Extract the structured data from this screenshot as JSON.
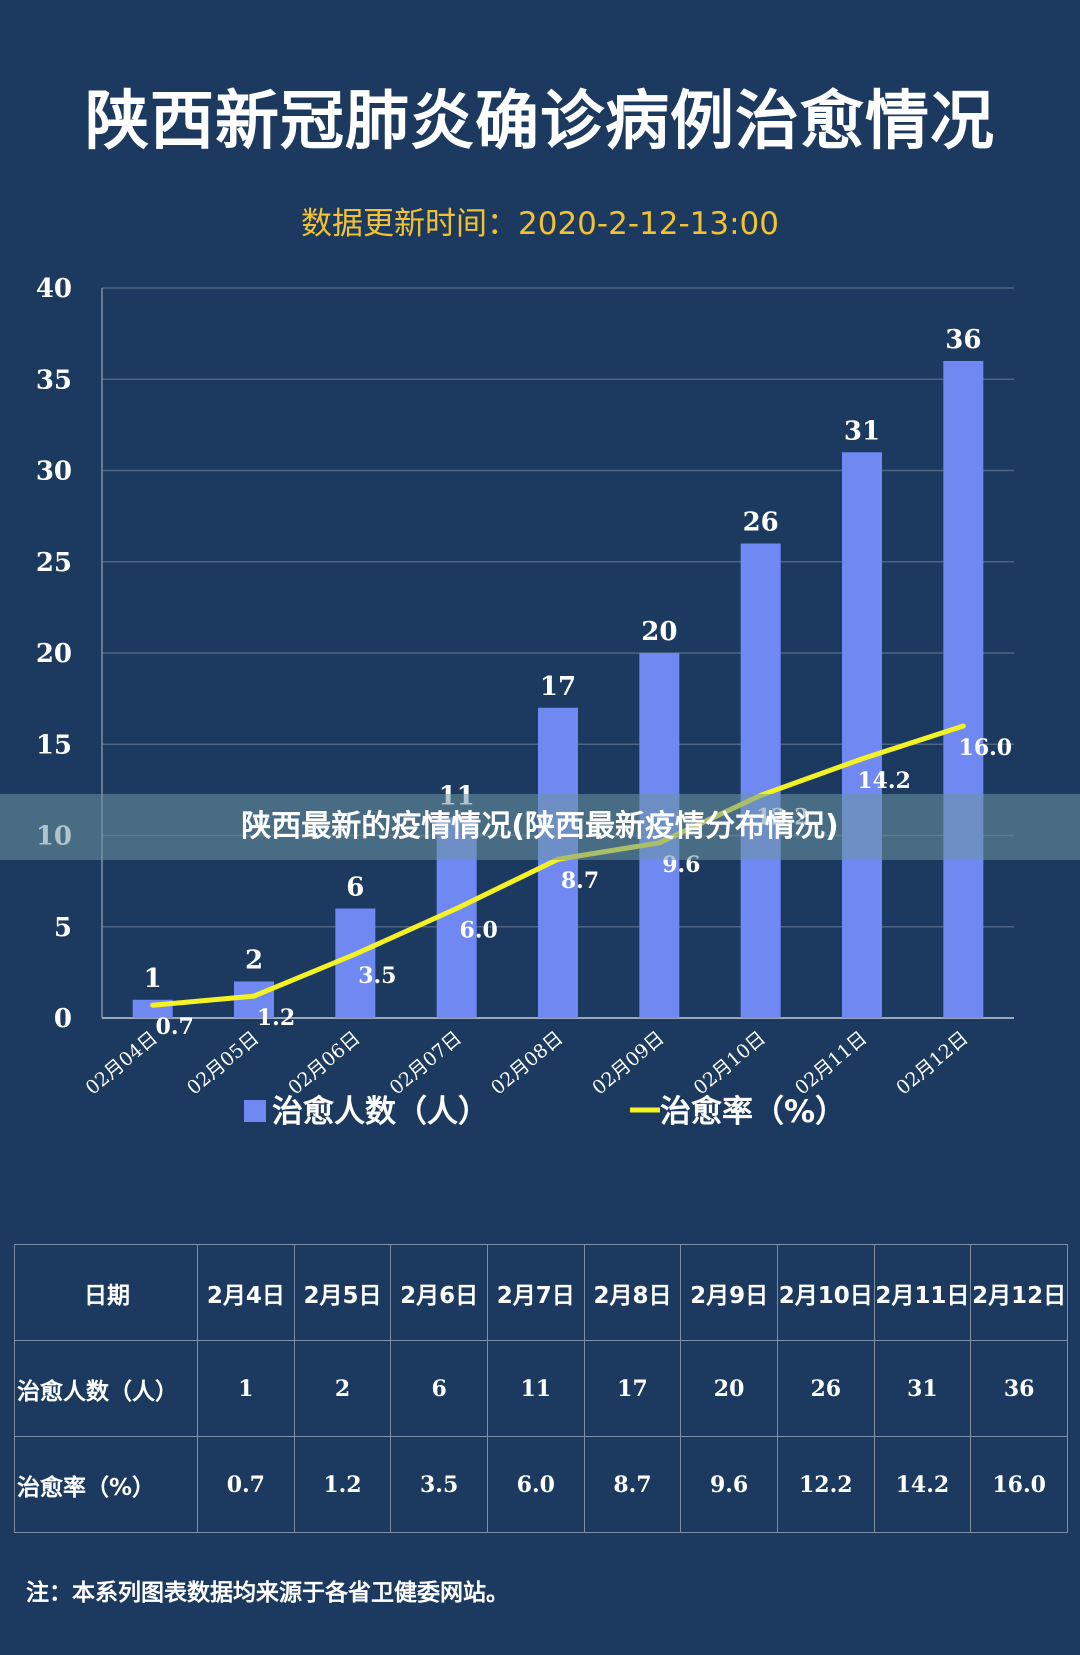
{
  "header": {
    "title": "陕西新冠肺炎确诊病例治愈情况",
    "subtitle": "数据更新时间：2020-2-12-13:00"
  },
  "overlay_banner": "陕西最新的疫情情况(陕西最新疫情分布情况)",
  "chart_data": {
    "type": "bar",
    "categories": [
      "02月04日",
      "02月05日",
      "02月06日",
      "02月07日",
      "02月08日",
      "02月09日",
      "02月10日",
      "02月11日",
      "02月12日"
    ],
    "series": [
      {
        "name": "治愈人数（人）",
        "type": "bar",
        "values": [
          1,
          2,
          6,
          11,
          17,
          20,
          26,
          31,
          36
        ]
      },
      {
        "name": "治愈率（%）",
        "type": "line",
        "values": [
          0.7,
          1.2,
          3.5,
          6.0,
          8.7,
          9.6,
          12.2,
          14.2,
          16.0
        ],
        "labels": [
          "0.7",
          "1.2",
          "3.5",
          "6.0",
          "8.7",
          "9.6",
          "12.2",
          "14.2",
          "16.0"
        ]
      }
    ],
    "ylim": [
      0,
      40
    ],
    "yticks": [
      0,
      5,
      10,
      15,
      20,
      25,
      30,
      35,
      40
    ],
    "grid": true,
    "legend_position": "bottom",
    "colors": {
      "bar": "#6f88f2",
      "line": "#f4f224",
      "grid": "#4d6483",
      "axis_text": "#ffffff"
    }
  },
  "table": {
    "header": [
      "日期",
      "2月4日",
      "2月5日",
      "2月6日",
      "2月7日",
      "2月8日",
      "2月9日",
      "2月10日",
      "2月11日",
      "2月12日"
    ],
    "rows": [
      [
        "治愈人数（人）",
        "1",
        "2",
        "6",
        "11",
        "17",
        "20",
        "26",
        "31",
        "36"
      ],
      [
        "治愈率（%）",
        "0.7",
        "1.2",
        "3.5",
        "6.0",
        "8.7",
        "9.6",
        "12.2",
        "14.2",
        "16.0"
      ]
    ]
  },
  "footnote": "注：本系列图表数据均来源于各省卫健委网站。"
}
